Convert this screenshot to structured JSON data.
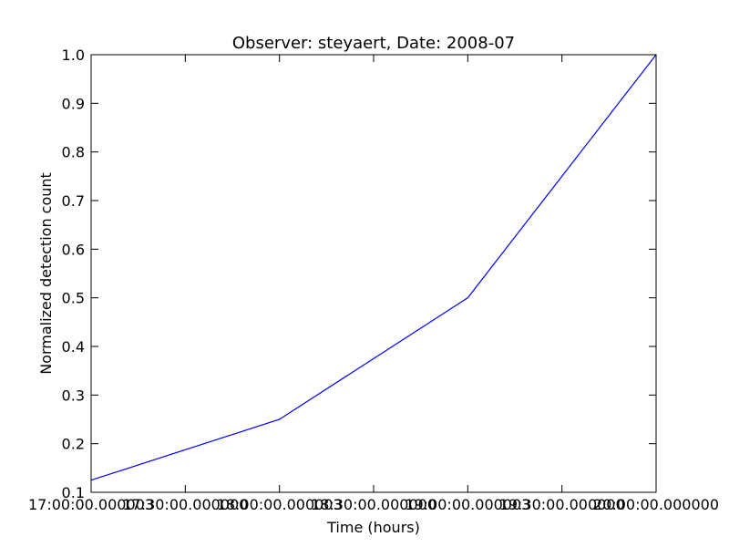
{
  "chart_data": {
    "type": "line",
    "title": "Observer: steyaert, Date: 2008-07",
    "xlabel": "Time (hours)",
    "ylabel": "Normalized detection count",
    "x_tick_labels": [
      "17:00:00.000003",
      "17:30:00.000000",
      "18:00:00.000003",
      "18:30:00.000000",
      "19:00:00.000003",
      "19:30:00.000000",
      "20:00:00.000000"
    ],
    "y_tick_labels": [
      "0.1",
      "0.2",
      "0.3",
      "0.4",
      "0.5",
      "0.6",
      "0.7",
      "0.8",
      "0.9",
      "1.0"
    ],
    "x_range": [
      "17:00",
      "20:00"
    ],
    "ylim": [
      0.1,
      1.0
    ],
    "series": [
      {
        "x": [
          "17:00",
          "18:00",
          "19:00",
          "20:00"
        ],
        "values": [
          0.125,
          0.25,
          0.5,
          1.0
        ],
        "color": "#0000ff"
      }
    ],
    "grid": false,
    "legend": "none"
  }
}
